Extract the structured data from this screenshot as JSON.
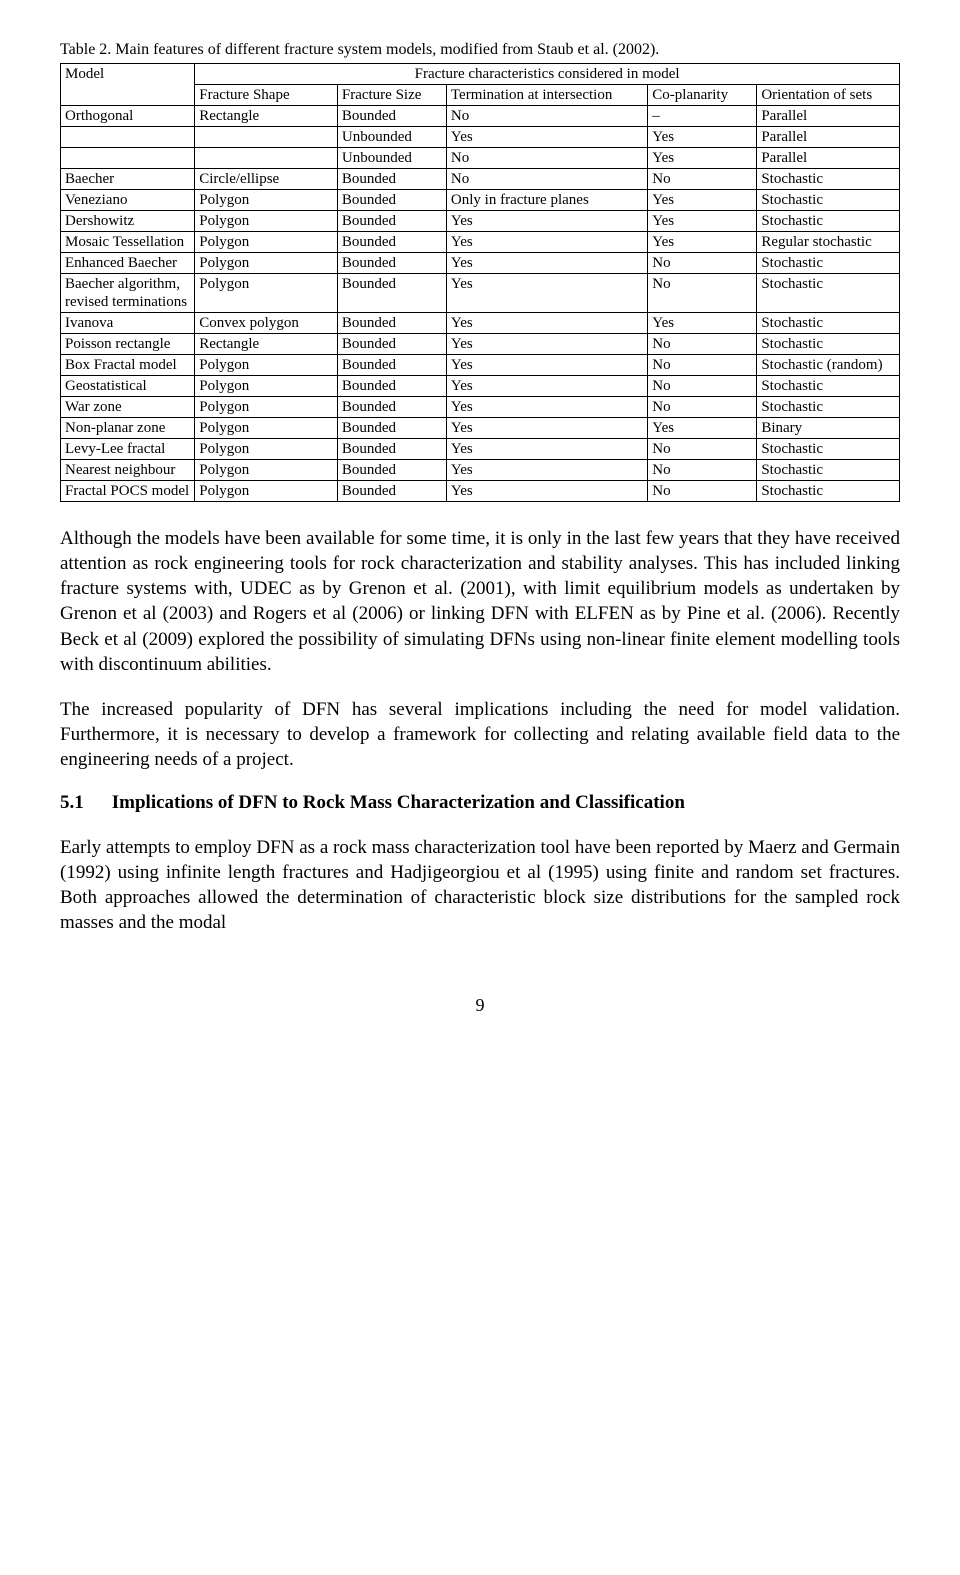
{
  "caption": "Table 2. Main features of different fracture system models, modified from Staub et al. (2002).",
  "table": {
    "header_row1": {
      "model": "Model",
      "span": "Fracture characteristics considered in model"
    },
    "header_row2": {
      "shape": "Fracture Shape",
      "size": "Fracture Size",
      "termination": "Termination at intersection",
      "coplanarity": "Co-planarity",
      "orientation": "Orientation of sets"
    },
    "rows": [
      {
        "model": "Orthogonal",
        "shape": "Rectangle",
        "size": "Bounded",
        "termination": "No",
        "coplanarity": "–",
        "orientation": "Parallel"
      },
      {
        "model": "",
        "shape": "",
        "size": "Unbounded",
        "termination": "Yes",
        "coplanarity": "Yes",
        "orientation": "Parallel"
      },
      {
        "model": "",
        "shape": "",
        "size": "Unbounded",
        "termination": "No",
        "coplanarity": "Yes",
        "orientation": "Parallel"
      },
      {
        "model": "Baecher",
        "shape": "Circle/ellipse",
        "size": "Bounded",
        "termination": "No",
        "coplanarity": "No",
        "orientation": "Stochastic"
      },
      {
        "model": "Veneziano",
        "shape": "Polygon",
        "size": "Bounded",
        "termination": "Only in fracture planes",
        "coplanarity": "Yes",
        "orientation": "Stochastic"
      },
      {
        "model": "Dershowitz",
        "shape": "Polygon",
        "size": "Bounded",
        "termination": "Yes",
        "coplanarity": "Yes",
        "orientation": "Stochastic"
      },
      {
        "model": "Mosaic Tessellation",
        "shape": "Polygon",
        "size": "Bounded",
        "termination": "Yes",
        "coplanarity": "Yes",
        "orientation": "Regular stochastic"
      },
      {
        "model": "Enhanced Baecher",
        "shape": "Polygon",
        "size": "Bounded",
        "termination": "Yes",
        "coplanarity": "No",
        "orientation": "Stochastic"
      },
      {
        "model": "Baecher algorithm, revised terminations",
        "shape": "Polygon",
        "size": "Bounded",
        "termination": "Yes",
        "coplanarity": "No",
        "orientation": "Stochastic"
      },
      {
        "model": "Ivanova",
        "shape": "Convex polygon",
        "size": "Bounded",
        "termination": "Yes",
        "coplanarity": "Yes",
        "orientation": "Stochastic"
      },
      {
        "model": "Poisson rectangle",
        "shape": "Rectangle",
        "size": "Bounded",
        "termination": "Yes",
        "coplanarity": "No",
        "orientation": "Stochastic"
      },
      {
        "model": "Box Fractal model",
        "shape": "Polygon",
        "size": "Bounded",
        "termination": "Yes",
        "coplanarity": "No",
        "orientation": "Stochastic (random)"
      },
      {
        "model": "Geostatistical",
        "shape": "Polygon",
        "size": "Bounded",
        "termination": "Yes",
        "coplanarity": "No",
        "orientation": "Stochastic"
      },
      {
        "model": "War zone",
        "shape": "Polygon",
        "size": "Bounded",
        "termination": "Yes",
        "coplanarity": "No",
        "orientation": "Stochastic"
      },
      {
        "model": "Non-planar zone",
        "shape": "Polygon",
        "size": "Bounded",
        "termination": "Yes",
        "coplanarity": "Yes",
        "orientation": "Binary"
      },
      {
        "model": "Levy-Lee fractal",
        "shape": "Polygon",
        "size": "Bounded",
        "termination": "Yes",
        "coplanarity": "No",
        "orientation": "Stochastic"
      },
      {
        "model": "Nearest neighbour",
        "shape": "Polygon",
        "size": "Bounded",
        "termination": "Yes",
        "coplanarity": "No",
        "orientation": "Stochastic"
      },
      {
        "model": "Fractal POCS model",
        "shape": "Polygon",
        "size": "Bounded",
        "termination": "Yes",
        "coplanarity": "No",
        "orientation": "Stochastic"
      }
    ],
    "col_widths": [
      "16%",
      "17%",
      "13%",
      "24%",
      "13%",
      "17%"
    ]
  },
  "paragraphs": {
    "p1": "Although the models have been available for some time, it is only in the last few years that they have received attention as rock engineering tools for rock characterization and stability analyses. This has included linking fracture systems with, UDEC as by Grenon et al. (2001), with limit equilibrium models as undertaken by Grenon et al (2003) and Rogers et al (2006) or linking DFN with ELFEN as by Pine et al. (2006). Recently Beck et al (2009) explored the possibility of simulating DFNs using non-linear finite element modelling tools with discontinuum abilities.",
    "p2": "The increased popularity of DFN has several implications including the need for model validation. Furthermore, it is necessary to develop a framework for collecting and relating available field data to the engineering needs of a project."
  },
  "section": {
    "number": "5.1",
    "title": "Implications of DFN to Rock Mass Characterization and Classification"
  },
  "paragraphs2": {
    "p3": "Early attempts to employ DFN as a rock mass characterization tool have been reported by Maerz and Germain (1992) using infinite length fractures and Hadjigeorgiou et al (1995) using finite and random set fractures. Both approaches allowed the determination of characteristic block size distributions for the sampled rock masses and the modal"
  },
  "page_number": "9"
}
